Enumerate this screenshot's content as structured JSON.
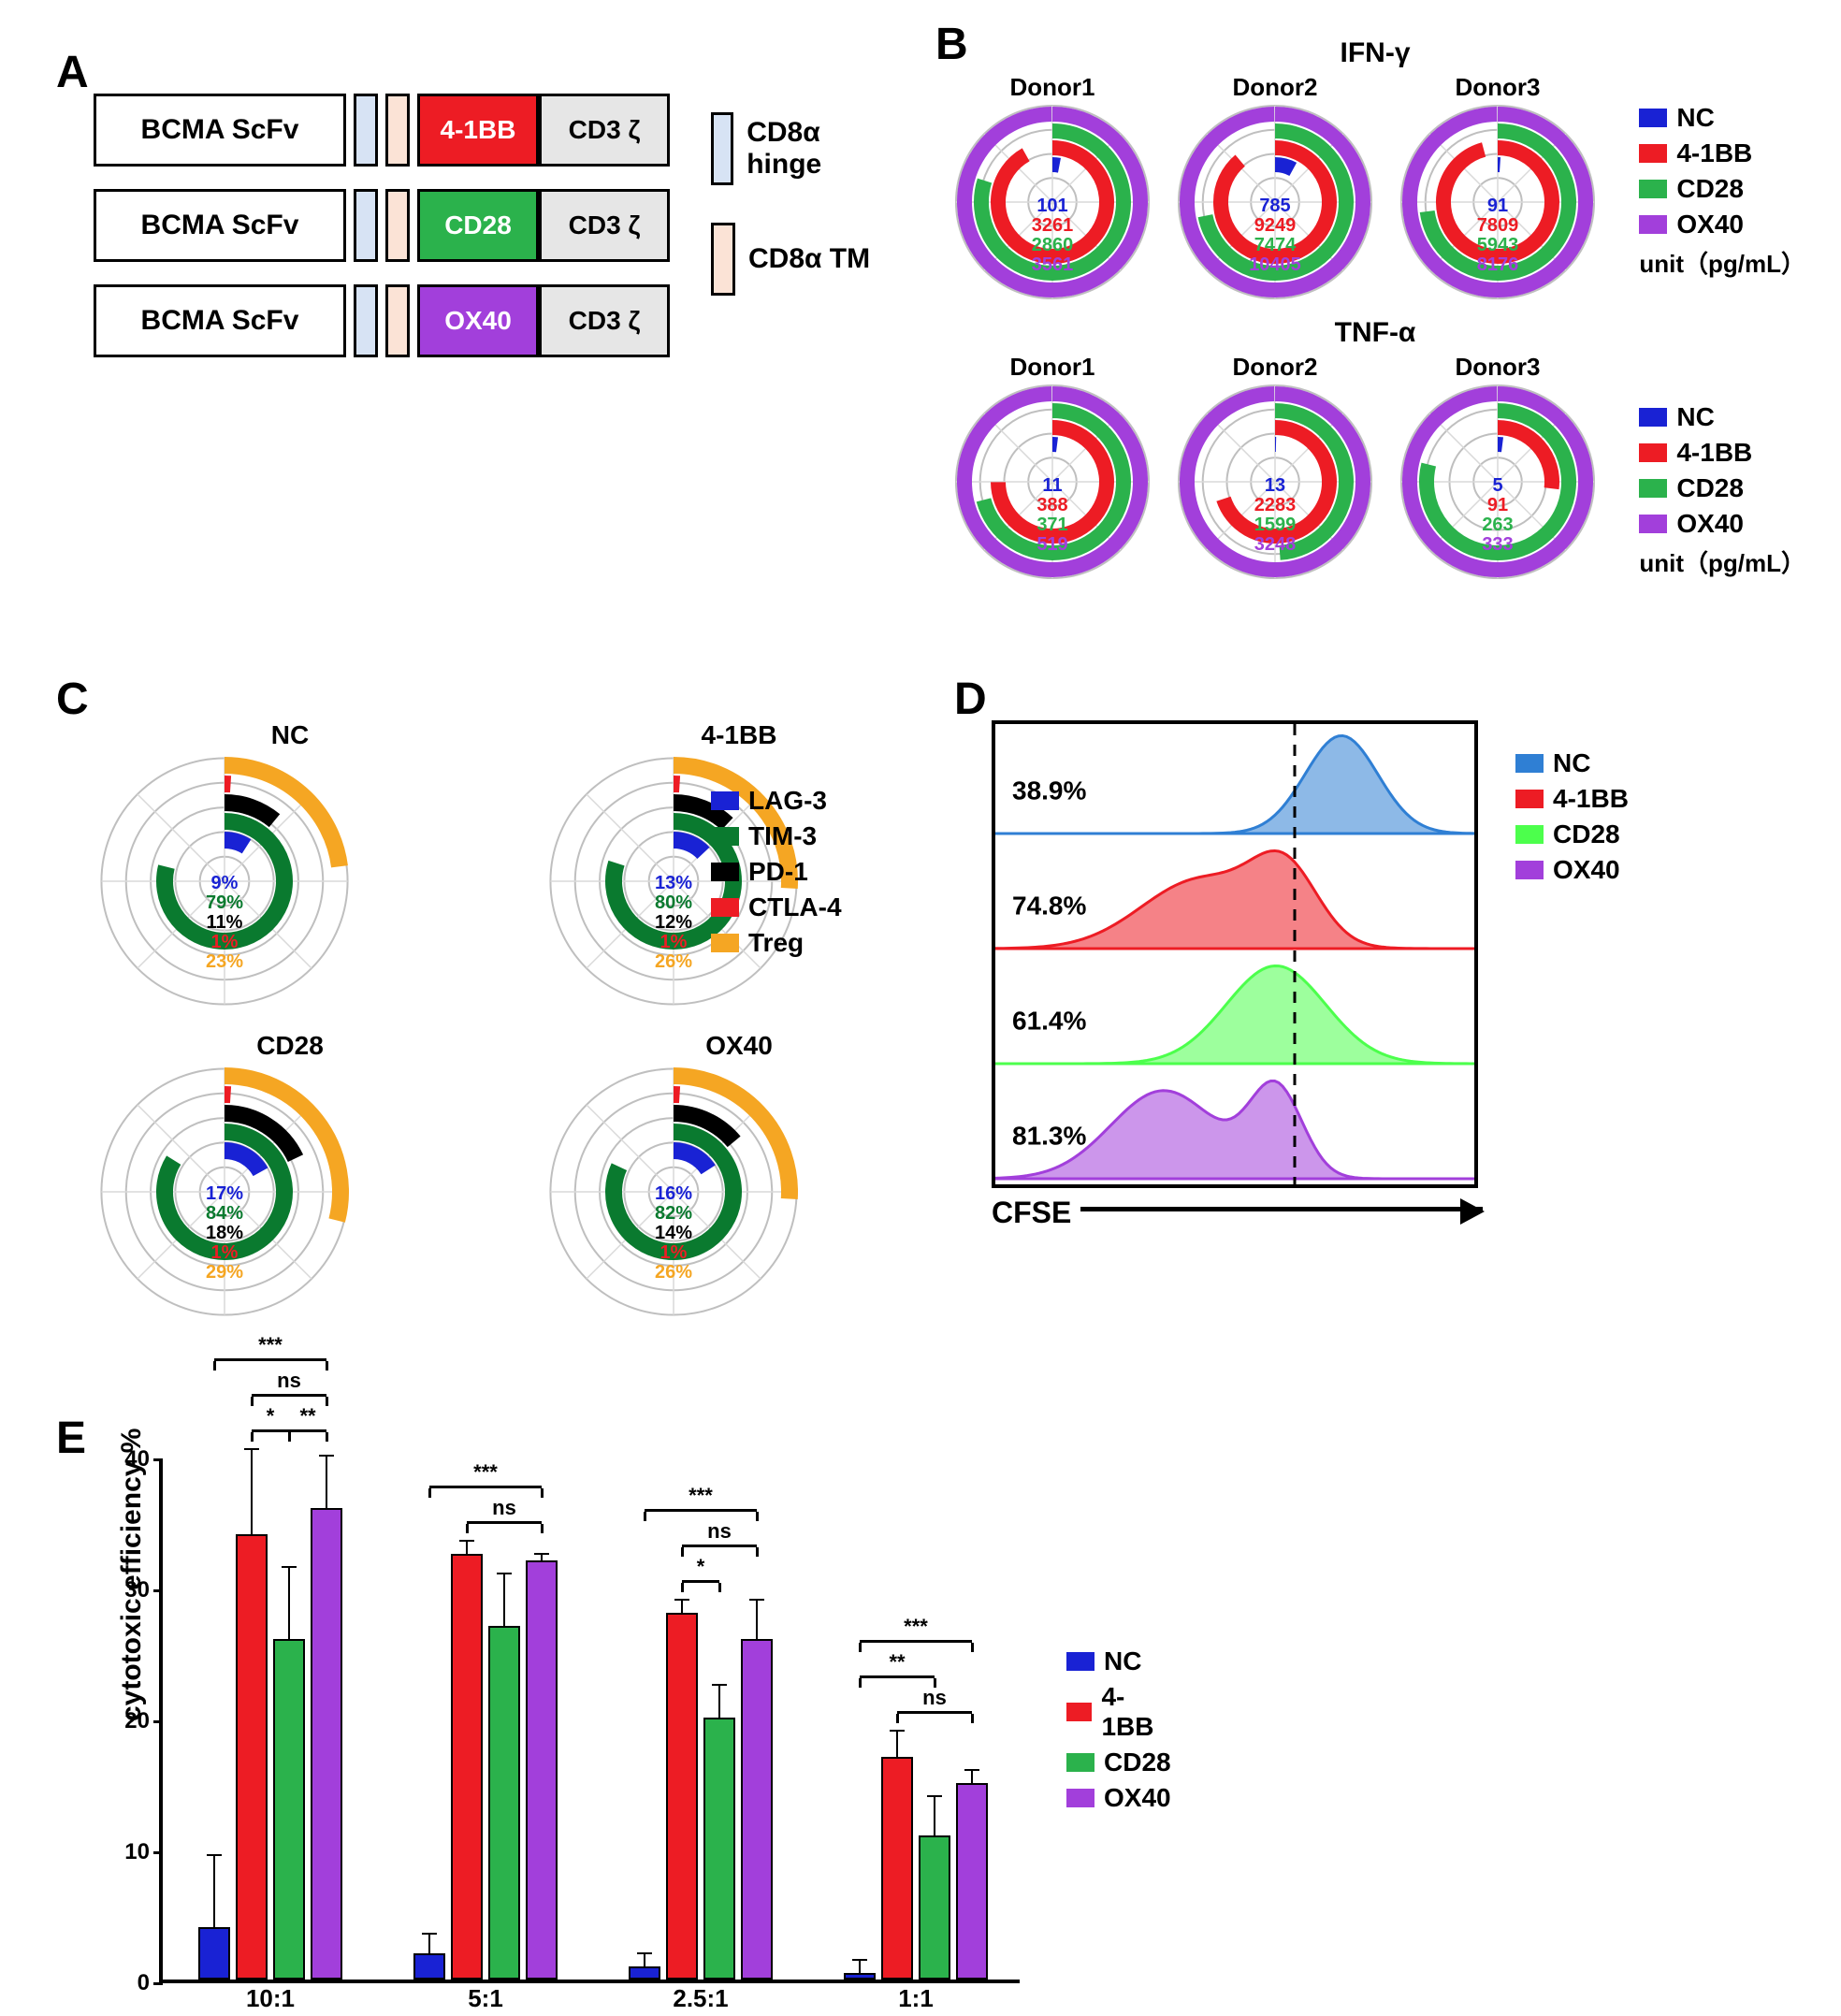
{
  "colors": {
    "nc": "#1922d4",
    "bb": "#ed1c24",
    "cd28": "#2bb24c",
    "ox40": "#a23fdb",
    "cd28_bright": "#4cff4c",
    "hinge": "#d7e3f4",
    "tm": "#fbe3d6",
    "cd3z_bg": "#e6e6e6",
    "lag3": "#1922d4",
    "tim3": "#0a7a2f",
    "pd1": "#000000",
    "ctla4": "#ed1c24",
    "treg": "#f5a623"
  },
  "panelA": {
    "scfv": "BCMA  ScFv",
    "costim": [
      "4-1BB",
      "CD28",
      "OX40"
    ],
    "costim_colors": [
      "#ed1c24",
      "#2bb24c",
      "#a23fdb"
    ],
    "cd3z": "CD3 ζ",
    "legend": [
      {
        "label": "CD8α hinge",
        "color": "#d7e3f4"
      },
      {
        "label": "CD8α TM",
        "color": "#fbe3d6"
      }
    ]
  },
  "panelB": {
    "top_title": "IFN-γ",
    "bottom_title": "TNF-α",
    "donors": [
      "Donor1",
      "Donor2",
      "Donor3"
    ],
    "ifng": [
      {
        "vals": [
          101,
          3261,
          2860,
          3561
        ],
        "fracs": [
          0.03,
          0.92,
          0.8,
          1.0
        ]
      },
      {
        "vals": [
          785,
          9249,
          7474,
          10405
        ],
        "fracs": [
          0.08,
          0.89,
          0.72,
          1.0
        ]
      },
      {
        "vals": [
          91,
          7809,
          5943,
          8176
        ],
        "fracs": [
          0.01,
          0.96,
          0.73,
          1.0
        ]
      }
    ],
    "tnfa": [
      {
        "vals": [
          11,
          388,
          371,
          519
        ],
        "fracs": [
          0.02,
          0.75,
          0.71,
          1.0
        ]
      },
      {
        "vals": [
          13,
          2283,
          1599,
          3248
        ],
        "fracs": [
          0.004,
          0.7,
          0.49,
          1.0
        ]
      },
      {
        "vals": [
          5,
          91,
          263,
          333
        ],
        "fracs": [
          0.02,
          0.27,
          0.79,
          1.0
        ]
      }
    ],
    "legend_items": [
      "NC",
      "4-1BB",
      "CD28",
      "OX40"
    ],
    "legend_colors": [
      "#1922d4",
      "#ed1c24",
      "#2bb24c",
      "#a23fdb"
    ],
    "unit": "unit（pg/mL）"
  },
  "panelC": {
    "cells": [
      {
        "title": "NC",
        "vals": [
          "9%",
          "79%",
          "11%",
          "1%",
          "23%"
        ],
        "fracs": [
          0.09,
          0.79,
          0.11,
          0.01,
          0.23
        ]
      },
      {
        "title": "4-1BB",
        "vals": [
          "13%",
          "80%",
          "12%",
          "1%",
          "26%"
        ],
        "fracs": [
          0.13,
          0.8,
          0.12,
          0.01,
          0.26
        ]
      },
      {
        "title": "CD28",
        "vals": [
          "17%",
          "84%",
          "18%",
          "1%",
          "29%"
        ],
        "fracs": [
          0.17,
          0.84,
          0.18,
          0.01,
          0.29
        ]
      },
      {
        "title": "OX40",
        "vals": [
          "16%",
          "82%",
          "14%",
          "1%",
          "26%"
        ],
        "fracs": [
          0.16,
          0.82,
          0.14,
          0.01,
          0.26
        ]
      }
    ],
    "legend_items": [
      "LAG-3",
      "TIM-3",
      "PD-1",
      "CTLA-4",
      "Treg"
    ],
    "legend_colors": [
      "#1922d4",
      "#0a7a2f",
      "#000000",
      "#ed1c24",
      "#f5a623"
    ]
  },
  "panelD": {
    "percents": [
      "38.9%",
      "74.8%",
      "61.4%",
      "81.3%"
    ],
    "colors": [
      "#2f7fd4",
      "#ed1c24",
      "#4cff4c",
      "#a23fdb"
    ],
    "legend_items": [
      "NC",
      "4-1BB",
      "CD28",
      "OX40"
    ],
    "axis": "CFSE"
  },
  "panelE": {
    "ylabel": "cytotoxic efficiency %",
    "ymax": 40,
    "ytick_step": 10,
    "groups": [
      "10:1",
      "5:1",
      "2.5:1",
      "1:1"
    ],
    "series": [
      "NC",
      "4-1BB",
      "CD28",
      "OX40"
    ],
    "series_colors": [
      "#1922d4",
      "#ed1c24",
      "#2bb24c",
      "#a23fdb"
    ],
    "values": [
      [
        4,
        34,
        26,
        36
      ],
      [
        2,
        32.5,
        27,
        32
      ],
      [
        1,
        28,
        20,
        26
      ],
      [
        0.5,
        17,
        11,
        15
      ]
    ],
    "errors": [
      [
        5.5,
        6.5,
        5.5,
        4
      ],
      [
        1.5,
        1,
        4,
        0.5
      ],
      [
        1,
        1,
        2.5,
        3
      ],
      [
        1,
        2,
        3,
        1
      ]
    ],
    "sig": [
      [
        {
          "from": 1,
          "to": 2,
          "label": "*",
          "level": 0
        },
        {
          "from": 2,
          "to": 3,
          "label": "**",
          "level": 0
        },
        {
          "from": 1,
          "to": 3,
          "label": "ns",
          "level": 1
        },
        {
          "from": 0,
          "to": 3,
          "label": "***",
          "level": 2
        }
      ],
      [
        {
          "from": 1,
          "to": 3,
          "label": "ns",
          "level": 0
        },
        {
          "from": 0,
          "to": 3,
          "label": "***",
          "level": 1
        }
      ],
      [
        {
          "from": 1,
          "to": 2,
          "label": "*",
          "level": 0
        },
        {
          "from": 1,
          "to": 3,
          "label": "ns",
          "level": 1
        },
        {
          "from": 0,
          "to": 3,
          "label": "***",
          "level": 2
        }
      ],
      [
        {
          "from": 1,
          "to": 3,
          "label": "ns",
          "level": 0
        },
        {
          "from": 0,
          "to": 2,
          "label": "**",
          "level": 1
        },
        {
          "from": 0,
          "to": 3,
          "label": "***",
          "level": 2
        }
      ]
    ]
  }
}
